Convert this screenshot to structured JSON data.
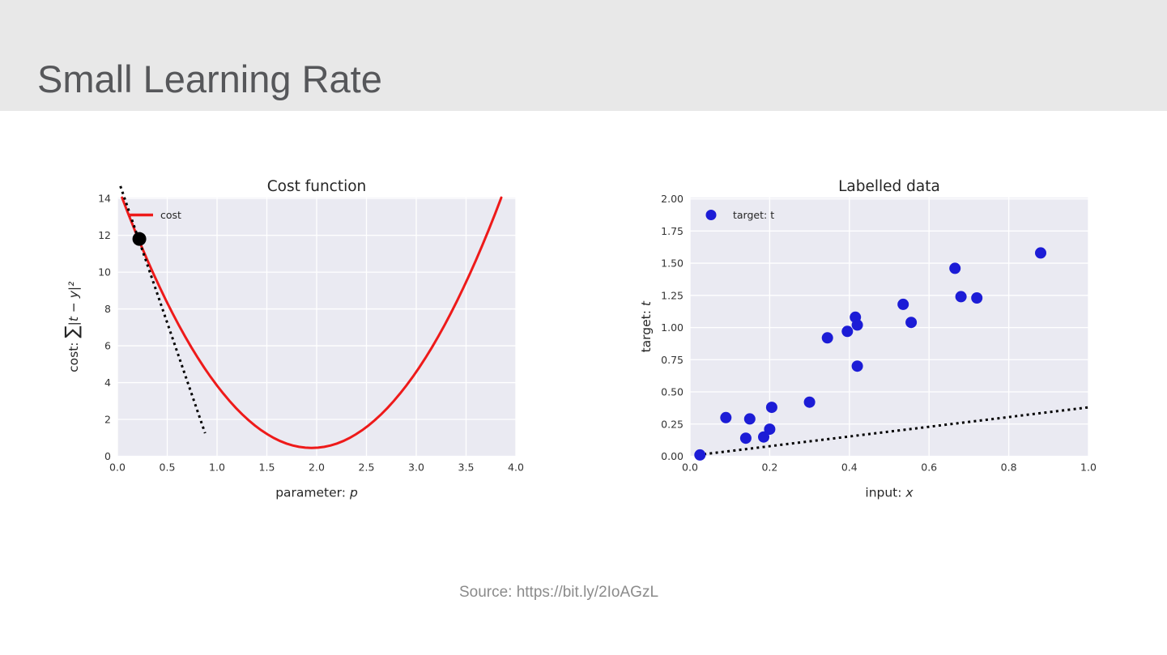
{
  "slide": {
    "title": "Small Learning Rate",
    "source": "Source: https://bit.ly/2IoAGzL"
  },
  "colors": {
    "header_bg": "#e8e8e8",
    "slide_title": "#56575a",
    "plot_bg": "#eaeaf2",
    "grid": "#ffffff",
    "curve_red": "#ee1a1a",
    "scatter_blue": "#1c1cd6",
    "annotation_black": "#000000",
    "tick_label": "#333333",
    "chart_title": "#262626",
    "source_text": "#8b8b8b"
  },
  "chart_data": [
    {
      "type": "line",
      "title": "Cost function",
      "xlabel": "parameter: p",
      "ylabel": "cost: ∑|t − y|²",
      "xlim": [
        0,
        4
      ],
      "ylim": [
        0,
        14.05
      ],
      "grid": true,
      "xticks": {
        "values": [
          0,
          0.5,
          1,
          1.5,
          2,
          2.5,
          3,
          3.5,
          4
        ],
        "labels": [
          "0.0",
          "0.5",
          "1.0",
          "1.5",
          "2.0",
          "2.5",
          "3.0",
          "3.5",
          "4.0"
        ]
      },
      "yticks": {
        "values": [
          0,
          2,
          4,
          6,
          8,
          10,
          12,
          14
        ],
        "labels": [
          "0",
          "2",
          "4",
          "6",
          "8",
          "10",
          "12",
          "14"
        ]
      },
      "legend": {
        "label": "cost",
        "marker": "line",
        "position": "upper-left"
      },
      "curve": {
        "name": "cost",
        "shape": "parabola",
        "vertex": [
          1.95,
          0.45
        ],
        "coeff": 3.75,
        "x_start": 0.046,
        "x_end": 3.854
      },
      "tangent_line": {
        "x1": 0.03,
        "y1": 14.67,
        "x2": 0.88,
        "y2": 1.25,
        "style": "dotted"
      },
      "current_point": {
        "x": 0.22,
        "y": 11.8
      }
    },
    {
      "type": "scatter",
      "title": "Labelled data",
      "xlabel": "input: x",
      "ylabel": "target: t",
      "xlim": [
        0,
        1
      ],
      "ylim": [
        0,
        2.01
      ],
      "grid": true,
      "xticks": {
        "values": [
          0,
          0.2,
          0.4,
          0.6,
          0.8,
          1.0
        ],
        "labels": [
          "0.0",
          "0.2",
          "0.4",
          "0.6",
          "0.8",
          "1.0"
        ]
      },
      "yticks": {
        "values": [
          0,
          0.25,
          0.5,
          0.75,
          1.0,
          1.25,
          1.5,
          1.75,
          2.0
        ],
        "labels": [
          "0.00",
          "0.25",
          "0.50",
          "0.75",
          "1.00",
          "1.25",
          "1.50",
          "1.75",
          "2.00"
        ]
      },
      "legend": {
        "label": "target: t",
        "marker": "dot",
        "position": "upper-left"
      },
      "points": [
        [
          0.025,
          0.01
        ],
        [
          0.09,
          0.3
        ],
        [
          0.14,
          0.14
        ],
        [
          0.15,
          0.29
        ],
        [
          0.185,
          0.15
        ],
        [
          0.2,
          0.21
        ],
        [
          0.205,
          0.38
        ],
        [
          0.3,
          0.42
        ],
        [
          0.345,
          0.92
        ],
        [
          0.395,
          0.97
        ],
        [
          0.415,
          1.08
        ],
        [
          0.42,
          1.02
        ],
        [
          0.42,
          0.7
        ],
        [
          0.535,
          1.18
        ],
        [
          0.555,
          1.04
        ],
        [
          0.665,
          1.46
        ],
        [
          0.68,
          1.24
        ],
        [
          0.72,
          1.23
        ],
        [
          0.88,
          1.58
        ]
      ],
      "model_line": {
        "x1": 0.02,
        "y1": 0.01,
        "x2": 1.0,
        "y2": 0.38,
        "style": "dotted"
      }
    }
  ]
}
